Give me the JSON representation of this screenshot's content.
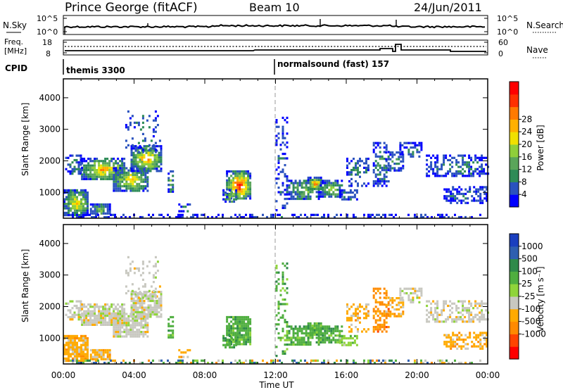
{
  "header": {
    "station": "Prince George (fitACF)",
    "beam": "Beam 10",
    "date": "24/Jun/2011"
  },
  "strip_noise": {
    "left_label": "N.Sky",
    "right_label": "N.Search",
    "left_ticks": [
      "10^5",
      "10^0"
    ],
    "right_ticks": [
      "10^5",
      "10^0"
    ]
  },
  "strip_freq": {
    "left_label_1": "Freq.",
    "left_label_2": "[MHz]",
    "right_label": "Nave",
    "left_ticks": [
      "18",
      "8"
    ],
    "right_ticks": [
      "60",
      "0"
    ]
  },
  "cpid": {
    "label": "CPID",
    "programs": [
      {
        "name": "themis 3300",
        "start_h": 0
      },
      {
        "name": "normalsound (fast) 157",
        "start_h": 12
      }
    ]
  },
  "colors": {
    "power_bar": [
      "#0000ff",
      "#2a52be",
      "#2e8b57",
      "#5aa55a",
      "#8fcf3a",
      "#f0e000",
      "#ffb000",
      "#ff7a00",
      "#ff3000",
      "#ff0000"
    ],
    "velocity_bar": [
      "#1a3fbf",
      "#2e5fb0",
      "#2f8a4a",
      "#4fae3f",
      "#8fd43a",
      "#c8c8c0",
      "#ffaa00",
      "#ff8a00",
      "#ff4400",
      "#ff0000"
    ]
  },
  "chart_data": [
    {
      "type": "heatmap",
      "title": "Power",
      "xlabel": "Time UT",
      "ylabel": "Slant Range [km]",
      "x_ticks": [
        "00:00",
        "04:00",
        "08:00",
        "12:00",
        "16:00",
        "20:00",
        "00:00"
      ],
      "y_ticks": [
        "1000",
        "2000",
        "3000",
        "4000"
      ],
      "xlim_hours": [
        0,
        24
      ],
      "ylim_km": [
        180,
        4600
      ],
      "colorbar_label": "Power [dB]",
      "colorbar_ticks": [
        "4",
        "8",
        "12",
        "16",
        "20",
        "24",
        "28"
      ],
      "features": [
        {
          "t": [
            0.0,
            1.3
          ],
          "r": [
            350,
            1100
          ],
          "peak": 20
        },
        {
          "t": [
            0.2,
            6.0
          ],
          "r": [
            1300,
            2500
          ],
          "peak": 22
        },
        {
          "t": [
            1.5,
            2.5
          ],
          "r": [
            300,
            600
          ],
          "peak": 16
        },
        {
          "t": [
            3.0,
            5.5
          ],
          "r": [
            2000,
            3500
          ],
          "peak": 6
        },
        {
          "t": [
            9.2,
            10.7
          ],
          "r": [
            700,
            1700
          ],
          "peak": 30
        },
        {
          "t": [
            12.5,
            17.5
          ],
          "r": [
            900,
            2000
          ],
          "peak": 16
        },
        {
          "t": [
            14.5,
            22.0
          ],
          "r": [
            1500,
            2600
          ],
          "peak": 10
        },
        {
          "t": [
            20.0,
            24.0
          ],
          "r": [
            600,
            2000
          ],
          "peak": 8
        }
      ]
    },
    {
      "type": "heatmap",
      "title": "Velocity",
      "xlabel": "Time UT",
      "ylabel": "Slant Range [km]",
      "x_ticks": [
        "00:00",
        "04:00",
        "08:00",
        "12:00",
        "16:00",
        "20:00",
        "00:00"
      ],
      "y_ticks": [
        "1000",
        "2000",
        "3000",
        "4000"
      ],
      "xlim_hours": [
        0,
        24
      ],
      "ylim_km": [
        180,
        4600
      ],
      "colorbar_label": "Velocity [m s⁻¹]",
      "colorbar_ticks": [
        "1000",
        "500",
        "100",
        "25",
        "-25",
        "-100",
        "-500",
        "-1000"
      ]
    }
  ]
}
